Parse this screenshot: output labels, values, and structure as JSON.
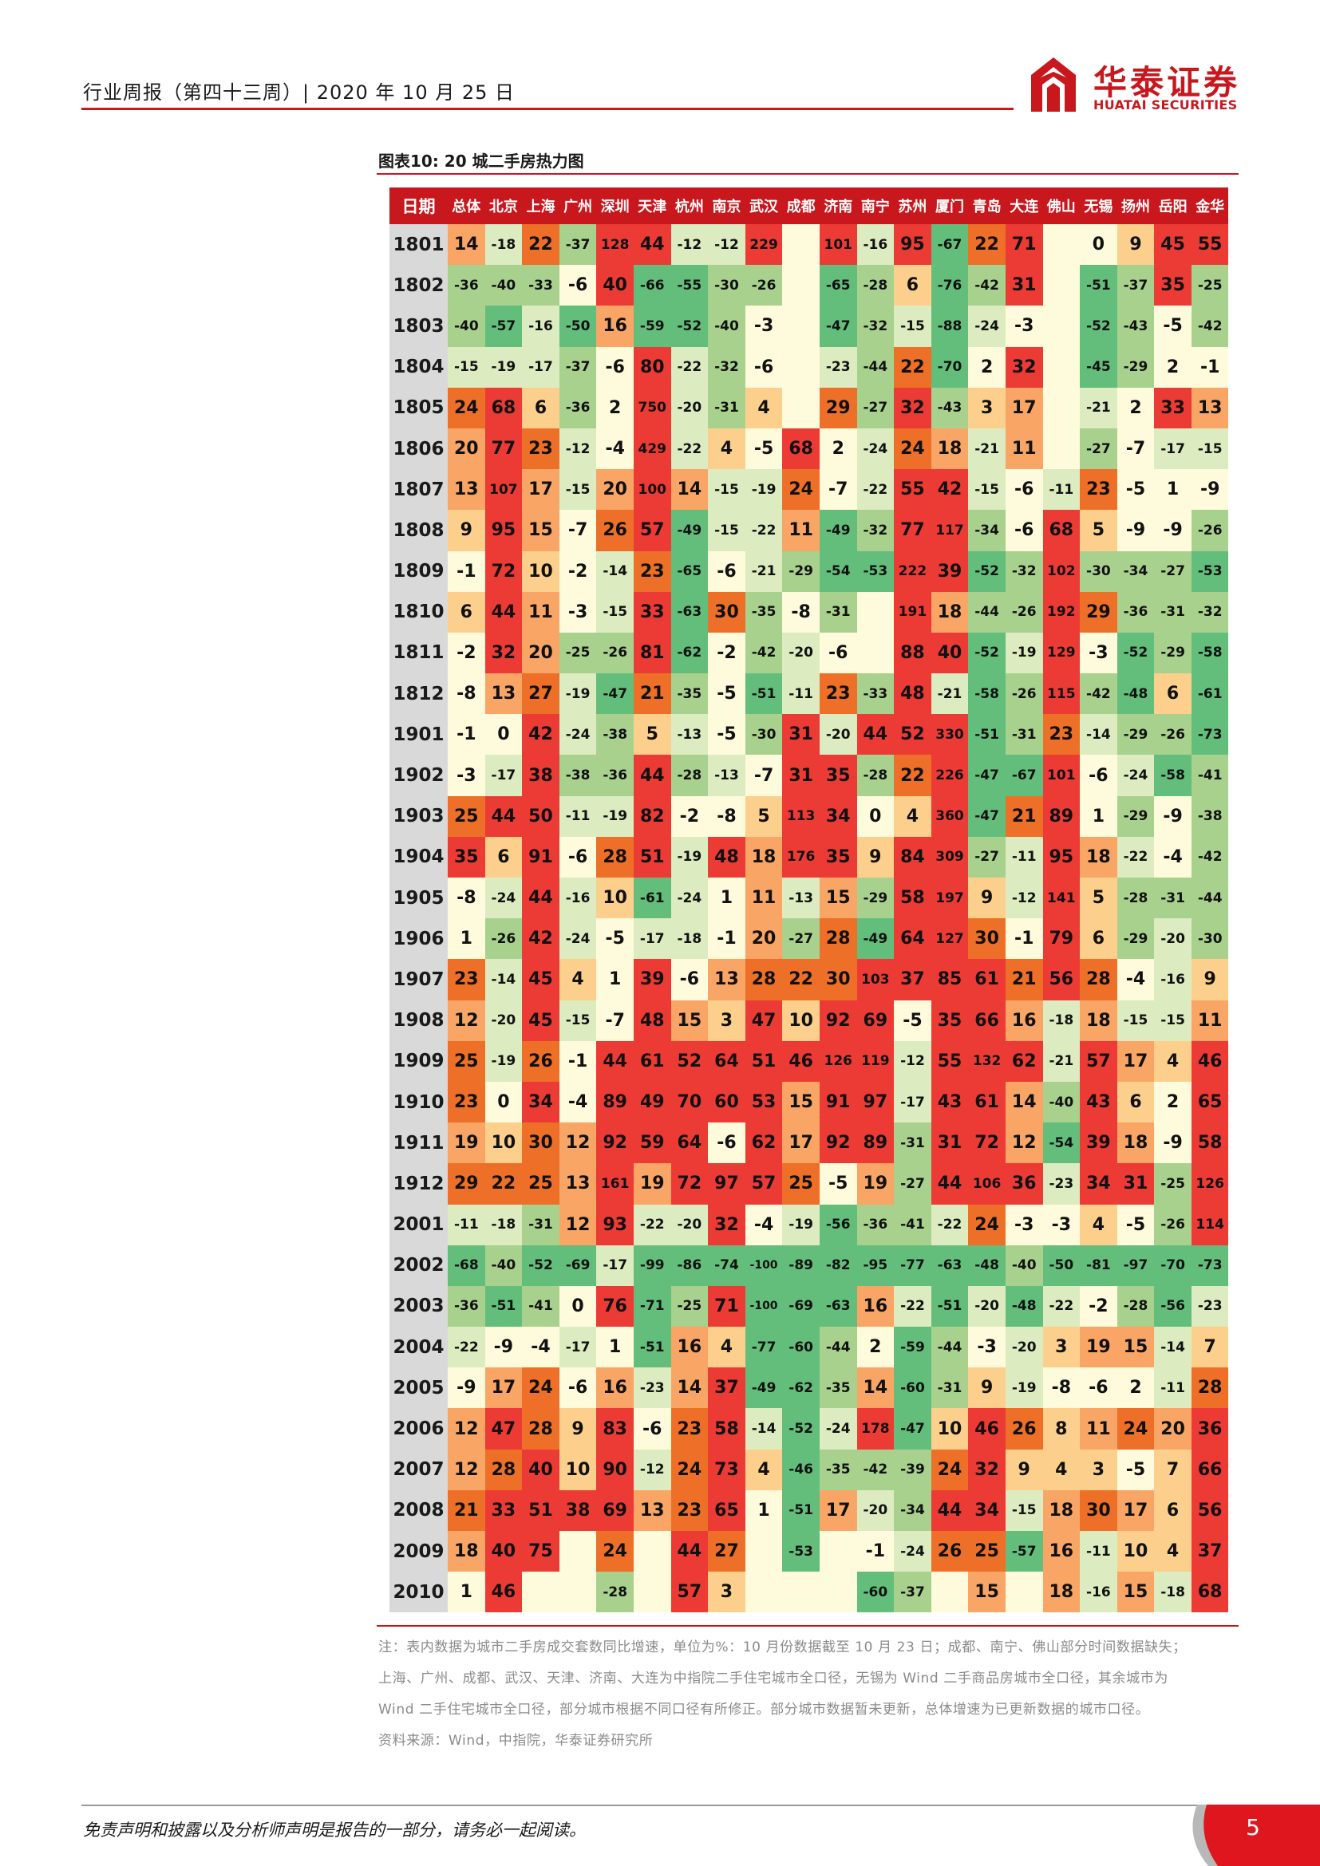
{
  "header": {
    "title": "行业周报（第四十三周）| 2020 年 10 月 25 日",
    "logo_cn": "华泰证券",
    "logo_en": "HUATAI SECURITIES"
  },
  "figure": {
    "title": "图表10:    20 城二手房热力图"
  },
  "table": {
    "date_header": "日期",
    "cities": [
      "总体",
      "北京",
      "上海",
      "广州",
      "深圳",
      "天津",
      "杭州",
      "南京",
      "武汉",
      "成都",
      "济南",
      "南宁",
      "苏州",
      "厦门",
      "青岛",
      "大连",
      "佛山",
      "无锡",
      "扬州",
      "岳阳",
      "金华"
    ],
    "rows": [
      {
        "date": "1801",
        "values": [
          14,
          -18,
          22,
          -37,
          128,
          44,
          -12,
          -12,
          229,
          null,
          101,
          -16,
          95,
          -67,
          22,
          71,
          null,
          0,
          9,
          45,
          55
        ]
      },
      {
        "date": "1802",
        "values": [
          -36,
          -40,
          -33,
          -6,
          40,
          -66,
          -55,
          -30,
          -26,
          null,
          -65,
          -28,
          6,
          -76,
          -42,
          31,
          null,
          -51,
          -37,
          35,
          -25
        ]
      },
      {
        "date": "1803",
        "values": [
          -40,
          -57,
          -16,
          -50,
          16,
          -59,
          -52,
          -40,
          -3,
          null,
          -47,
          -32,
          -15,
          -88,
          -24,
          -3,
          null,
          -52,
          -43,
          -5,
          -42
        ]
      },
      {
        "date": "1804",
        "values": [
          -15,
          -19,
          -17,
          -37,
          -6,
          80,
          -22,
          -32,
          -6,
          null,
          -23,
          -44,
          22,
          -70,
          2,
          32,
          null,
          -45,
          -29,
          2,
          -1
        ]
      },
      {
        "date": "1805",
        "values": [
          24,
          68,
          6,
          -36,
          2,
          750,
          -20,
          -31,
          4,
          null,
          29,
          -27,
          32,
          -43,
          3,
          17,
          null,
          -21,
          2,
          33,
          13
        ]
      },
      {
        "date": "1806",
        "values": [
          20,
          77,
          23,
          -12,
          -4,
          429,
          -22,
          4,
          -5,
          68,
          2,
          -24,
          24,
          18,
          -21,
          11,
          null,
          -27,
          -7,
          -17,
          -15
        ]
      },
      {
        "date": "1807",
        "values": [
          13,
          107,
          17,
          -15,
          20,
          100,
          14,
          -15,
          -19,
          24,
          -7,
          -22,
          55,
          42,
          -15,
          -6,
          -11,
          23,
          -5,
          1,
          -9
        ]
      },
      {
        "date": "1808",
        "values": [
          9,
          95,
          15,
          -7,
          26,
          57,
          -49,
          -15,
          -22,
          11,
          -49,
          -32,
          77,
          117,
          -34,
          -6,
          68,
          5,
          -9,
          -9,
          -26
        ]
      },
      {
        "date": "1809",
        "values": [
          -1,
          72,
          10,
          -2,
          -14,
          23,
          -65,
          -6,
          -21,
          -29,
          -54,
          -53,
          222,
          39,
          -52,
          -32,
          102,
          -30,
          -34,
          -27,
          -53
        ]
      },
      {
        "date": "1810",
        "values": [
          6,
          44,
          11,
          -3,
          -15,
          33,
          -63,
          30,
          -35,
          -8,
          -31,
          null,
          191,
          18,
          -44,
          -26,
          192,
          29,
          -36,
          -31,
          -32
        ]
      },
      {
        "date": "1811",
        "values": [
          -2,
          32,
          20,
          -25,
          -26,
          81,
          -62,
          -2,
          -42,
          -20,
          -6,
          null,
          88,
          40,
          -52,
          -19,
          129,
          -3,
          -52,
          -29,
          -58
        ]
      },
      {
        "date": "1812",
        "values": [
          -8,
          13,
          27,
          -19,
          -47,
          21,
          -35,
          -5,
          -51,
          -11,
          23,
          -33,
          48,
          -21,
          -58,
          -26,
          115,
          -42,
          -48,
          6,
          -61
        ]
      },
      {
        "date": "1901",
        "values": [
          -1,
          0,
          42,
          -24,
          -38,
          5,
          -13,
          -5,
          -30,
          31,
          -20,
          44,
          52,
          330,
          -51,
          -31,
          23,
          -14,
          -29,
          -26,
          -73
        ]
      },
      {
        "date": "1902",
        "values": [
          -3,
          -17,
          38,
          -38,
          -36,
          44,
          -28,
          -13,
          -7,
          31,
          35,
          -28,
          22,
          226,
          -47,
          -67,
          101,
          -6,
          -24,
          -58,
          -41
        ]
      },
      {
        "date": "1903",
        "values": [
          25,
          44,
          50,
          -11,
          -19,
          82,
          -2,
          -8,
          5,
          113,
          34,
          0,
          4,
          360,
          -47,
          21,
          89,
          1,
          -29,
          -9,
          -38
        ]
      },
      {
        "date": "1904",
        "values": [
          35,
          6,
          91,
          -6,
          28,
          51,
          -19,
          48,
          18,
          176,
          35,
          9,
          84,
          309,
          -27,
          -11,
          95,
          18,
          -22,
          -4,
          -42
        ]
      },
      {
        "date": "1905",
        "values": [
          -8,
          -24,
          44,
          -16,
          10,
          -61,
          -24,
          1,
          11,
          -13,
          15,
          -29,
          58,
          197,
          9,
          -12,
          141,
          5,
          -28,
          -31,
          -44
        ]
      },
      {
        "date": "1906",
        "values": [
          1,
          -26,
          42,
          -24,
          -5,
          -17,
          -18,
          -1,
          20,
          -27,
          28,
          -49,
          64,
          127,
          30,
          -1,
          79,
          6,
          -29,
          -20,
          -30
        ]
      },
      {
        "date": "1907",
        "values": [
          23,
          -14,
          45,
          4,
          1,
          39,
          -6,
          13,
          28,
          22,
          30,
          103,
          37,
          85,
          61,
          21,
          56,
          28,
          -4,
          -16,
          9
        ]
      },
      {
        "date": "1908",
        "values": [
          12,
          -20,
          45,
          -15,
          -7,
          48,
          15,
          3,
          47,
          10,
          92,
          69,
          -5,
          35,
          66,
          16,
          -18,
          18,
          -15,
          -15,
          11
        ]
      },
      {
        "date": "1909",
        "values": [
          25,
          -19,
          26,
          -1,
          44,
          61,
          52,
          64,
          51,
          46,
          126,
          119,
          -12,
          55,
          132,
          62,
          -21,
          57,
          17,
          4,
          46
        ]
      },
      {
        "date": "1910",
        "values": [
          23,
          0,
          34,
          -4,
          89,
          49,
          70,
          60,
          53,
          15,
          91,
          97,
          -17,
          43,
          61,
          14,
          -40,
          43,
          6,
          2,
          65
        ]
      },
      {
        "date": "1911",
        "values": [
          19,
          10,
          30,
          12,
          92,
          59,
          64,
          -6,
          62,
          17,
          92,
          89,
          -31,
          31,
          72,
          12,
          -54,
          39,
          18,
          -9,
          58
        ]
      },
      {
        "date": "1912",
        "values": [
          29,
          22,
          25,
          13,
          161,
          19,
          72,
          97,
          57,
          25,
          -5,
          19,
          -27,
          44,
          106,
          36,
          -23,
          34,
          31,
          -25,
          126
        ]
      },
      {
        "date": "2001",
        "values": [
          -11,
          -18,
          -31,
          12,
          93,
          -22,
          -20,
          32,
          -4,
          -19,
          -56,
          -36,
          -41,
          -22,
          24,
          -3,
          -3,
          4,
          -5,
          -26,
          114
        ]
      },
      {
        "date": "2002",
        "values": [
          -68,
          -40,
          -52,
          -69,
          -17,
          -99,
          -86,
          -74,
          -100,
          -89,
          -82,
          -95,
          -77,
          -63,
          -48,
          -40,
          -50,
          -81,
          -97,
          -70,
          -73
        ]
      },
      {
        "date": "2003",
        "values": [
          -36,
          -51,
          -41,
          0,
          76,
          -71,
          -25,
          71,
          -100,
          -69,
          -63,
          16,
          -22,
          -51,
          -20,
          -48,
          -22,
          -2,
          -28,
          -56,
          -23
        ]
      },
      {
        "date": "2004",
        "values": [
          -22,
          -9,
          -4,
          -17,
          1,
          -51,
          16,
          4,
          -77,
          -60,
          -44,
          2,
          -59,
          -44,
          -3,
          -20,
          3,
          19,
          15,
          -14,
          7
        ]
      },
      {
        "date": "2005",
        "values": [
          -9,
          17,
          24,
          -6,
          16,
          -23,
          14,
          37,
          -49,
          -62,
          -35,
          14,
          -60,
          -31,
          9,
          -19,
          -8,
          -6,
          2,
          -11,
          28
        ]
      },
      {
        "date": "2006",
        "values": [
          12,
          47,
          28,
          9,
          83,
          -6,
          23,
          58,
          -14,
          -52,
          -24,
          178,
          -47,
          10,
          46,
          26,
          8,
          11,
          24,
          20,
          36
        ]
      },
      {
        "date": "2007",
        "values": [
          12,
          28,
          40,
          10,
          90,
          -12,
          24,
          73,
          4,
          -46,
          -35,
          -42,
          -39,
          24,
          32,
          9,
          4,
          3,
          -5,
          7,
          66
        ]
      },
      {
        "date": "2008",
        "values": [
          21,
          33,
          51,
          38,
          69,
          13,
          23,
          65,
          1,
          -51,
          17,
          -20,
          -34,
          44,
          34,
          -15,
          18,
          30,
          17,
          6,
          56
        ]
      },
      {
        "date": "2009",
        "values": [
          18,
          40,
          75,
          null,
          24,
          null,
          44,
          27,
          null,
          -53,
          null,
          -1,
          -24,
          26,
          25,
          -57,
          16,
          -11,
          10,
          4,
          37
        ]
      },
      {
        "date": "2010",
        "values": [
          1,
          46,
          null,
          null,
          -28,
          null,
          57,
          3,
          null,
          null,
          null,
          -60,
          -37,
          null,
          15,
          null,
          18,
          -16,
          15,
          -18,
          68
        ]
      }
    ]
  },
  "notes": {
    "line1": "注：表内数据为城市二手房成交套数同比增速，单位为%：10 月份数据截至 10 月 23 日；成都、南宁、佛山部分时间数据缺失；",
    "line2": "上海、广州、成都、武汉、天津、济南、大连为中指院二手住宅城市全口径，无锡为 Wind 二手商品房城市全口径，其余城市为",
    "line3": "Wind 二手住宅城市全口径，部分城市根据不同口径有所修正。部分城市数据暂未更新，总体增速为已更新数据的城市口径。",
    "source": "资料来源：Wind，中指院，华泰证券研究所"
  },
  "footer": {
    "disclaimer": "免责声明和披露以及分析师声明是报告的一部分，请务必一起阅读。",
    "page": "5"
  },
  "colors": {
    "accent": "#c8171d",
    "heat_empty": "#fefbdc",
    "heat_green_strong": "#63be7b",
    "heat_green_mid": "#a9d18e",
    "heat_green_light": "#dcebc0",
    "heat_pale": "#fefbdc",
    "heat_yellow": "#fcd08c",
    "heat_orange": "#f8a566",
    "heat_orange_strong": "#ee7028",
    "heat_red": "#ec3b35"
  }
}
